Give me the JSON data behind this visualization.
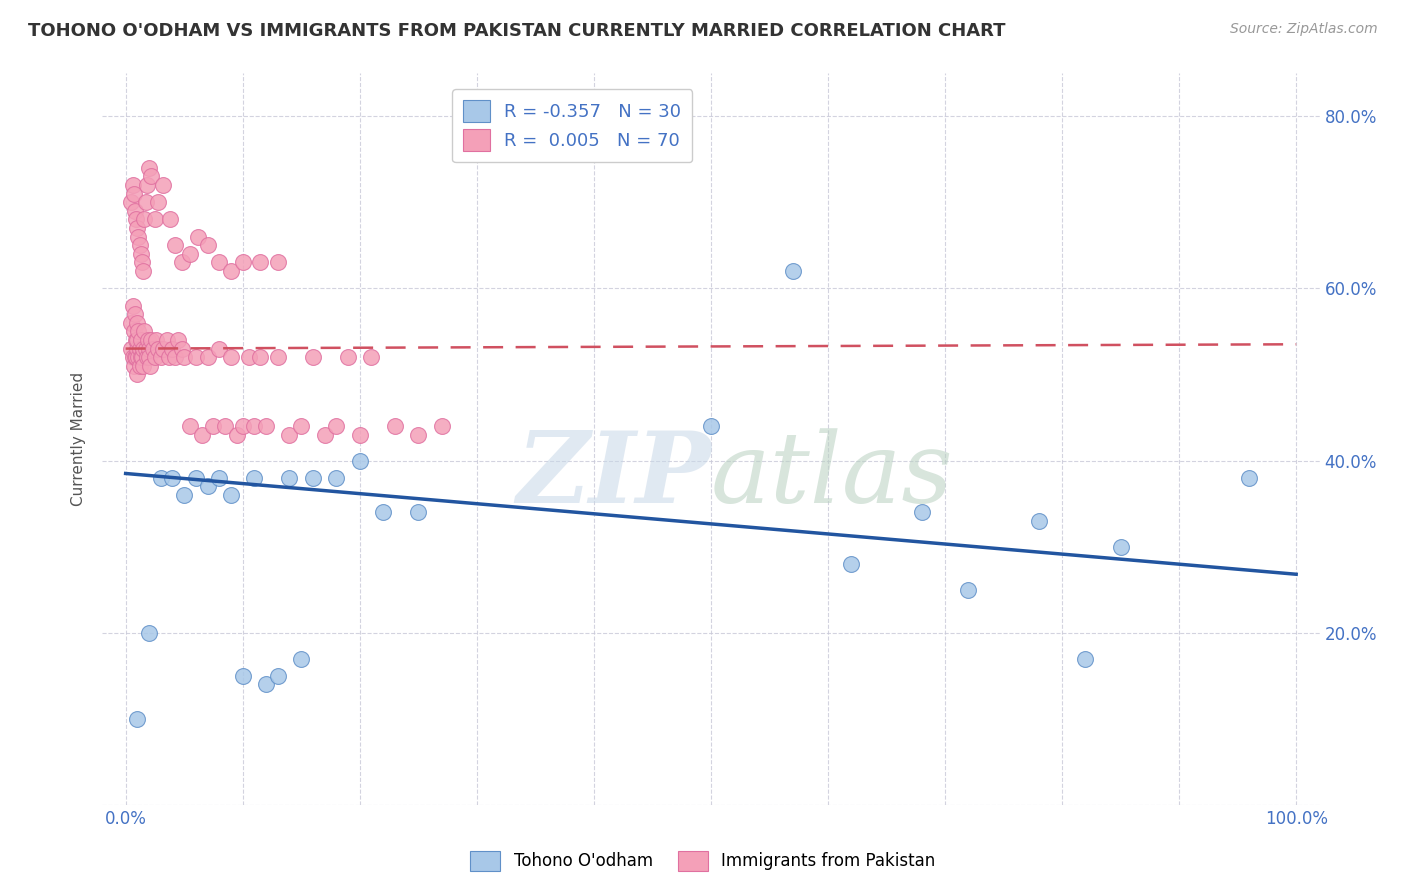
{
  "title": "TOHONO O'ODHAM VS IMMIGRANTS FROM PAKISTAN CURRENTLY MARRIED CORRELATION CHART",
  "source": "Source: ZipAtlas.com",
  "ylabel": "Currently Married",
  "xlim": [
    -0.02,
    1.02
  ],
  "ylim": [
    0.0,
    0.85
  ],
  "ytick_positions": [
    0.0,
    0.2,
    0.4,
    0.6,
    0.8
  ],
  "yticklabels": [
    "",
    "20.0%",
    "40.0%",
    "60.0%",
    "80.0%"
  ],
  "color_blue": "#a8c8e8",
  "color_pink": "#f4a0b8",
  "color_blue_line": "#2255a0",
  "color_pink_line": "#d05060",
  "blue_scatter_x": [
    0.01,
    0.02,
    0.03,
    0.04,
    0.05,
    0.06,
    0.07,
    0.08,
    0.09,
    0.1,
    0.11,
    0.12,
    0.13,
    0.14,
    0.15,
    0.16,
    0.18,
    0.2,
    0.22,
    0.25,
    0.5,
    0.57,
    0.62,
    0.68,
    0.72,
    0.78,
    0.82,
    0.85,
    0.96
  ],
  "blue_scatter_y": [
    0.1,
    0.2,
    0.38,
    0.38,
    0.36,
    0.38,
    0.37,
    0.38,
    0.36,
    0.15,
    0.38,
    0.14,
    0.15,
    0.38,
    0.17,
    0.38,
    0.38,
    0.4,
    0.34,
    0.34,
    0.44,
    0.62,
    0.28,
    0.34,
    0.25,
    0.33,
    0.17,
    0.3,
    0.38
  ],
  "pink_scatter_x": [
    0.005,
    0.005,
    0.006,
    0.006,
    0.007,
    0.007,
    0.008,
    0.008,
    0.009,
    0.009,
    0.01,
    0.01,
    0.01,
    0.01,
    0.011,
    0.011,
    0.012,
    0.012,
    0.013,
    0.013,
    0.014,
    0.015,
    0.015,
    0.016,
    0.017,
    0.018,
    0.019,
    0.02,
    0.02,
    0.021,
    0.022,
    0.023,
    0.025,
    0.026,
    0.028,
    0.03,
    0.032,
    0.035,
    0.037,
    0.04,
    0.042,
    0.045,
    0.048,
    0.05,
    0.055,
    0.06,
    0.065,
    0.07,
    0.075,
    0.08,
    0.085,
    0.09,
    0.095,
    0.1,
    0.105,
    0.11,
    0.115,
    0.12,
    0.13,
    0.14,
    0.15,
    0.16,
    0.17,
    0.18,
    0.19,
    0.2,
    0.21,
    0.23,
    0.25,
    0.27
  ],
  "pink_scatter_y": [
    0.53,
    0.56,
    0.52,
    0.58,
    0.51,
    0.55,
    0.52,
    0.57,
    0.52,
    0.54,
    0.53,
    0.5,
    0.54,
    0.56,
    0.52,
    0.55,
    0.51,
    0.53,
    0.52,
    0.54,
    0.52,
    0.51,
    0.53,
    0.55,
    0.53,
    0.52,
    0.54,
    0.53,
    0.52,
    0.51,
    0.54,
    0.53,
    0.52,
    0.54,
    0.53,
    0.52,
    0.53,
    0.54,
    0.52,
    0.53,
    0.52,
    0.54,
    0.53,
    0.52,
    0.44,
    0.52,
    0.43,
    0.52,
    0.44,
    0.53,
    0.44,
    0.52,
    0.43,
    0.44,
    0.52,
    0.44,
    0.52,
    0.44,
    0.52,
    0.43,
    0.44,
    0.52,
    0.43,
    0.44,
    0.52,
    0.43,
    0.52,
    0.44,
    0.43,
    0.44
  ],
  "pink_upper_x": [
    0.005,
    0.006,
    0.007,
    0.008,
    0.009,
    0.01,
    0.011,
    0.012,
    0.013,
    0.014,
    0.015,
    0.016,
    0.017,
    0.018,
    0.02,
    0.022,
    0.025,
    0.028,
    0.032,
    0.038,
    0.042,
    0.048,
    0.055,
    0.062,
    0.07,
    0.08,
    0.09,
    0.1,
    0.115,
    0.13
  ],
  "pink_upper_y": [
    0.7,
    0.72,
    0.71,
    0.69,
    0.68,
    0.67,
    0.66,
    0.65,
    0.64,
    0.63,
    0.62,
    0.68,
    0.7,
    0.72,
    0.74,
    0.73,
    0.68,
    0.7,
    0.72,
    0.68,
    0.65,
    0.63,
    0.64,
    0.66,
    0.65,
    0.63,
    0.62,
    0.63,
    0.63,
    0.63
  ],
  "blue_line_x": [
    0.0,
    1.0
  ],
  "blue_line_y_start": 0.385,
  "blue_line_y_end": 0.268,
  "pink_line_x": [
    0.0,
    1.0
  ],
  "pink_line_y_start": 0.53,
  "pink_line_y_end": 0.535
}
